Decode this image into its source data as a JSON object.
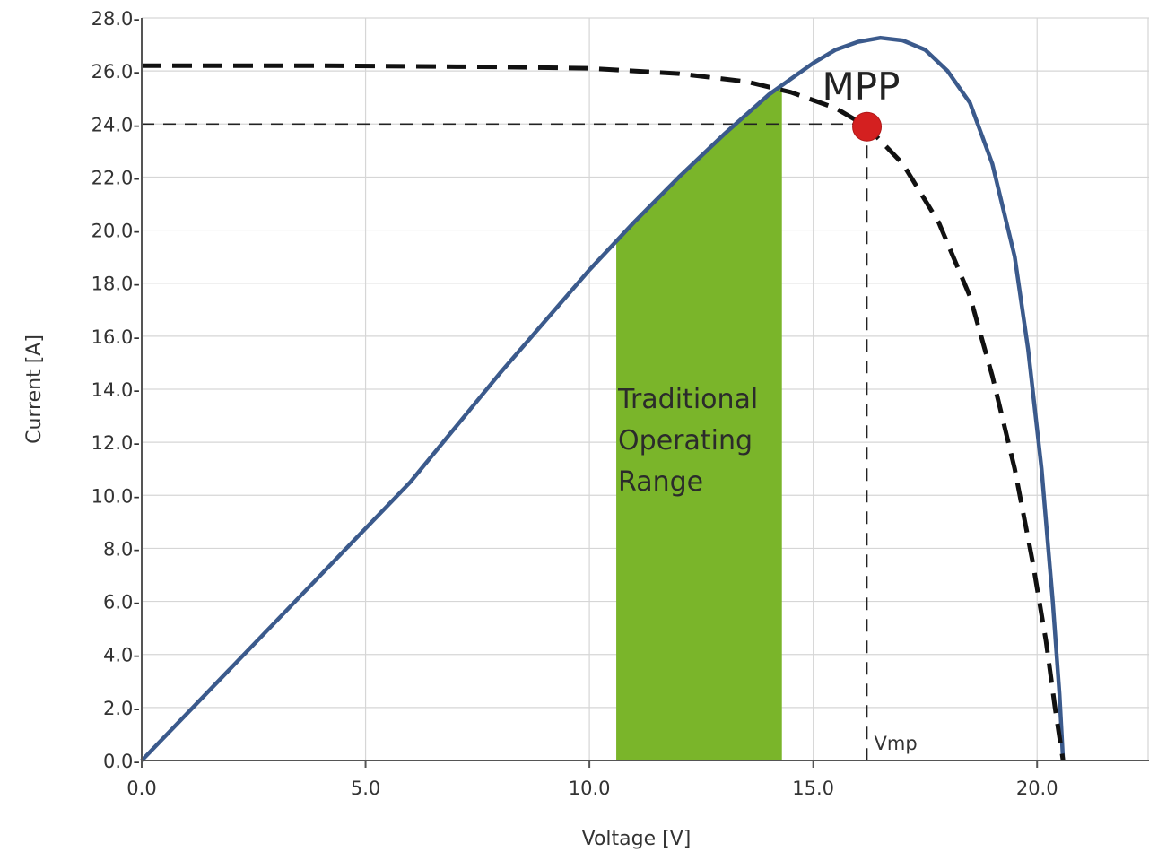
{
  "chart_data": {
    "type": "line",
    "xlabel": "Voltage [V]",
    "ylabel": "Current [A]",
    "xlim": [
      0,
      22.5
    ],
    "ylim": [
      0,
      28
    ],
    "x_ticks": [
      0,
      5,
      10,
      15,
      20
    ],
    "x_tick_labels": [
      "0.0",
      "5.0",
      "10.0",
      "15.0",
      "20.0"
    ],
    "y_ticks": [
      0,
      2,
      4,
      6,
      8,
      10,
      12,
      14,
      16,
      18,
      20,
      22,
      24,
      26,
      28
    ],
    "y_tick_labels": [
      "0.0-",
      "2.0-",
      "4.0-",
      "6.0-",
      "8.0-",
      "10.0-",
      "12.0-",
      "14.0-",
      "16.0-",
      "18.0-",
      "20.0-",
      "22.0-",
      "24.0-",
      "26.0-",
      "28.0-"
    ],
    "grid": true,
    "series": [
      {
        "style": "solid",
        "color": "#3b5a8c",
        "points": [
          [
            0,
            0
          ],
          [
            2,
            3.5
          ],
          [
            4,
            7.0
          ],
          [
            6,
            10.5
          ],
          [
            8,
            14.6
          ],
          [
            10,
            18.5
          ],
          [
            11,
            20.3
          ],
          [
            12,
            22.0
          ],
          [
            13,
            23.6
          ],
          [
            14,
            25.1
          ],
          [
            15,
            26.3
          ],
          [
            15.5,
            26.8
          ],
          [
            16,
            27.1
          ],
          [
            16.5,
            27.25
          ],
          [
            17,
            27.15
          ],
          [
            17.5,
            26.8
          ],
          [
            18,
            26.0
          ],
          [
            18.5,
            24.8
          ],
          [
            19,
            22.5
          ],
          [
            19.5,
            19.0
          ],
          [
            19.8,
            15.5
          ],
          [
            20.1,
            11.0
          ],
          [
            20.35,
            6.0
          ],
          [
            20.5,
            2.5
          ],
          [
            20.58,
            0
          ]
        ]
      },
      {
        "style": "dashed",
        "color": "#111111",
        "points": [
          [
            0,
            26.2
          ],
          [
            4,
            26.2
          ],
          [
            8,
            26.15
          ],
          [
            10,
            26.1
          ],
          [
            12,
            25.9
          ],
          [
            13.5,
            25.6
          ],
          [
            14.5,
            25.2
          ],
          [
            15.5,
            24.6
          ],
          [
            16.2,
            23.9
          ],
          [
            17,
            22.5
          ],
          [
            17.8,
            20.3
          ],
          [
            18.5,
            17.5
          ],
          [
            19,
            14.5
          ],
          [
            19.5,
            11.0
          ],
          [
            19.9,
            7.5
          ],
          [
            20.2,
            4.5
          ],
          [
            20.4,
            2.0
          ],
          [
            20.58,
            0
          ]
        ]
      }
    ],
    "shaded_region": {
      "x_start": 10.6,
      "x_end": 14.3,
      "color": "#7ab52a",
      "label": [
        "Traditional",
        "Operating",
        "Range"
      ]
    },
    "mpp": {
      "label": "MPP",
      "x": 16.2,
      "y": 23.9,
      "color": "#d42020"
    },
    "vmp_label": "Vmp",
    "reference_lines": [
      {
        "type": "horizontal",
        "y": 24.0,
        "to_x": 16.2
      },
      {
        "type": "vertical",
        "x": 16.2,
        "to_y": 24.0
      }
    ]
  }
}
